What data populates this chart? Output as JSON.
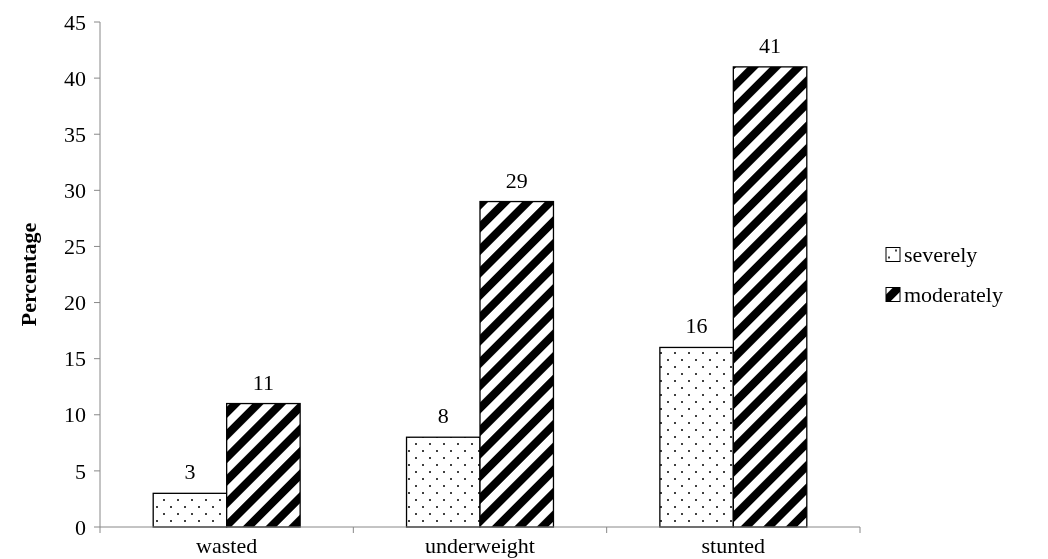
{
  "chart_data": {
    "type": "bar",
    "ylabel": "Percentage",
    "categories": [
      "wasted",
      "underweight",
      "stunted"
    ],
    "series": [
      {
        "name": "severely",
        "color": "#000000",
        "values": [
          3,
          8,
          16
        ]
      },
      {
        "name": "moderately",
        "color": "#000000",
        "values": [
          11,
          29,
          41
        ]
      }
    ],
    "ylim": [
      0,
      45
    ],
    "yticks": [
      0,
      5,
      10,
      15,
      20,
      25,
      30,
      35,
      40,
      45
    ],
    "data_labels": true,
    "legend": "right",
    "grid": false
  }
}
